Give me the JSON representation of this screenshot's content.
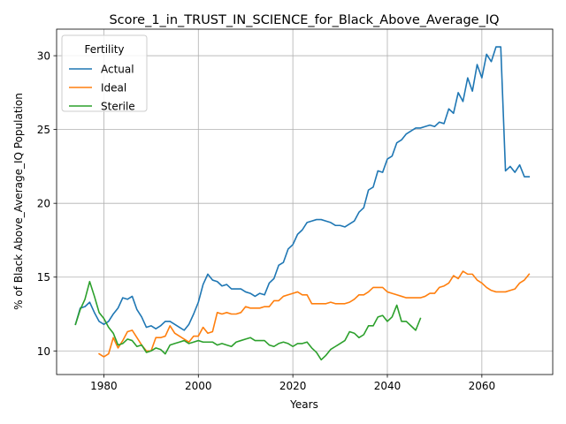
{
  "chart_data": {
    "type": "line",
    "title": "Score_1_in_TRUST_IN_SCIENCE_for_Black_Above_Average_IQ",
    "xlabel": "Years",
    "ylabel": "% of Black Above_Average_IQ Population",
    "xlim": [
      1970,
      2075
    ],
    "ylim": [
      8.4,
      31.8
    ],
    "xticks": [
      1980,
      2000,
      2020,
      2040,
      2060
    ],
    "yticks": [
      10,
      15,
      20,
      25,
      30
    ],
    "grid": true,
    "legend": {
      "title": "Fertility",
      "placement": "top-left"
    },
    "series": [
      {
        "name": "Actual",
        "color": "#1f77b4",
        "x": [
          1974,
          1975,
          1976,
          1977,
          1978,
          1979,
          1980,
          1981,
          1982,
          1983,
          1984,
          1985,
          1986,
          1987,
          1988,
          1989,
          1990,
          1991,
          1992,
          1993,
          1994,
          1995,
          1996,
          1997,
          1998,
          1999,
          2000,
          2001,
          2002,
          2003,
          2004,
          2005,
          2006,
          2007,
          2008,
          2009,
          2010,
          2011,
          2012,
          2013,
          2014,
          2015,
          2016,
          2017,
          2018,
          2019,
          2020,
          2021,
          2022,
          2023,
          2024,
          2025,
          2026,
          2027,
          2028,
          2029,
          2030,
          2031,
          2032,
          2033,
          2034,
          2035,
          2036,
          2037,
          2038,
          2039,
          2040,
          2041,
          2042,
          2043,
          2044,
          2045,
          2046,
          2047,
          2048,
          2049,
          2050,
          2051,
          2052,
          2053,
          2054,
          2055,
          2056,
          2057,
          2058,
          2059,
          2060,
          2061,
          2062,
          2063,
          2064,
          2065,
          2066,
          2067,
          2068,
          2069,
          2070
        ],
        "values": [
          11.8,
          12.9,
          13.0,
          13.3,
          12.6,
          12.0,
          11.8,
          12.0,
          12.5,
          12.9,
          13.6,
          13.5,
          13.7,
          12.8,
          12.3,
          11.6,
          11.7,
          11.5,
          11.7,
          12.0,
          12.0,
          11.8,
          11.6,
          11.4,
          11.8,
          12.5,
          13.3,
          14.5,
          15.2,
          14.8,
          14.7,
          14.4,
          14.5,
          14.2,
          14.2,
          14.2,
          14.0,
          13.9,
          13.7,
          13.9,
          13.8,
          14.6,
          14.9,
          15.8,
          16.0,
          16.9,
          17.2,
          17.9,
          18.2,
          18.7,
          18.8,
          18.9,
          18.9,
          18.8,
          18.7,
          18.5,
          18.5,
          18.4,
          18.6,
          18.8,
          19.4,
          19.7,
          20.9,
          21.1,
          22.2,
          22.1,
          23.0,
          23.2,
          24.1,
          24.3,
          24.7,
          24.9,
          25.1,
          25.1,
          25.2,
          25.3,
          25.2,
          25.5,
          25.4,
          26.4,
          26.1,
          27.5,
          26.9,
          28.5,
          27.6,
          29.4,
          28.5,
          30.1,
          29.6,
          30.6,
          30.6,
          22.2,
          22.5,
          22.1,
          22.6,
          21.8,
          21.8
        ]
      },
      {
        "name": "Ideal",
        "color": "#ff7f0e",
        "x": [
          1979,
          1980,
          1981,
          1982,
          1983,
          1984,
          1985,
          1986,
          1987,
          1988,
          1989,
          1990,
          1991,
          1992,
          1993,
          1994,
          1995,
          1996,
          1997,
          1998,
          1999,
          2000,
          2001,
          2002,
          2003,
          2004,
          2005,
          2006,
          2007,
          2008,
          2009,
          2010,
          2011,
          2012,
          2013,
          2014,
          2015,
          2016,
          2017,
          2018,
          2019,
          2020,
          2021,
          2022,
          2023,
          2024,
          2025,
          2026,
          2027,
          2028,
          2029,
          2030,
          2031,
          2032,
          2033,
          2034,
          2035,
          2036,
          2037,
          2038,
          2039,
          2040,
          2041,
          2042,
          2043,
          2044,
          2045,
          2046,
          2047,
          2048,
          2049,
          2050,
          2051,
          2052,
          2053,
          2054,
          2055,
          2056,
          2057,
          2058,
          2059,
          2060,
          2061,
          2062,
          2063,
          2064,
          2065,
          2066,
          2067,
          2068,
          2069,
          2070
        ],
        "values": [
          9.8,
          9.6,
          9.8,
          10.9,
          10.2,
          10.7,
          11.3,
          11.4,
          10.9,
          10.4,
          10.0,
          10.0,
          10.9,
          10.9,
          11.0,
          11.7,
          11.2,
          11.0,
          10.8,
          10.6,
          11.0,
          11.0,
          11.6,
          11.2,
          11.3,
          12.6,
          12.5,
          12.6,
          12.5,
          12.5,
          12.6,
          13.0,
          12.9,
          12.9,
          12.9,
          13.0,
          13.0,
          13.4,
          13.4,
          13.7,
          13.8,
          13.9,
          14.0,
          13.8,
          13.8,
          13.2,
          13.2,
          13.2,
          13.2,
          13.3,
          13.2,
          13.2,
          13.2,
          13.3,
          13.5,
          13.8,
          13.8,
          14.0,
          14.3,
          14.3,
          14.3,
          14.0,
          13.9,
          13.8,
          13.7,
          13.6,
          13.6,
          13.6,
          13.6,
          13.7,
          13.9,
          13.9,
          14.3,
          14.4,
          14.6,
          15.1,
          14.9,
          15.4,
          15.2,
          15.2,
          14.8,
          14.6,
          14.3,
          14.1,
          14.0,
          14.0,
          14.0,
          14.1,
          14.2,
          14.6,
          14.8,
          15.2
        ]
      },
      {
        "name": "Sterile",
        "color": "#2ca02c",
        "x": [
          1974,
          1975,
          1976,
          1977,
          1978,
          1979,
          1980,
          1981,
          1982,
          1983,
          1984,
          1985,
          1986,
          1987,
          1988,
          1989,
          1990,
          1991,
          1992,
          1993,
          1994,
          1995,
          1996,
          1997,
          1998,
          1999,
          2000,
          2001,
          2002,
          2003,
          2004,
          2005,
          2006,
          2007,
          2008,
          2009,
          2010,
          2011,
          2012,
          2013,
          2014,
          2015,
          2016,
          2017,
          2018,
          2019,
          2020,
          2021,
          2022,
          2023,
          2024,
          2025,
          2026,
          2027,
          2028,
          2029,
          2030,
          2031,
          2032,
          2033,
          2034,
          2035,
          2036,
          2037,
          2038,
          2039,
          2040,
          2041,
          2042,
          2043,
          2044,
          2045,
          2046,
          2047
        ],
        "values": [
          11.8,
          12.8,
          13.5,
          14.7,
          13.7,
          12.6,
          12.2,
          11.6,
          11.2,
          10.4,
          10.5,
          10.8,
          10.7,
          10.3,
          10.4,
          9.9,
          10.0,
          10.2,
          10.1,
          9.8,
          10.4,
          10.5,
          10.6,
          10.7,
          10.5,
          10.6,
          10.7,
          10.6,
          10.6,
          10.6,
          10.4,
          10.5,
          10.4,
          10.3,
          10.6,
          10.7,
          10.8,
          10.9,
          10.7,
          10.7,
          10.7,
          10.4,
          10.3,
          10.5,
          10.6,
          10.5,
          10.3,
          10.5,
          10.5,
          10.6,
          10.2,
          9.9,
          9.4,
          9.7,
          10.1,
          10.3,
          10.5,
          10.7,
          11.3,
          11.2,
          10.9,
          11.1,
          11.7,
          11.7,
          12.3,
          12.4,
          12.0,
          12.3,
          13.1,
          12.0,
          12.0,
          11.7,
          11.4,
          12.2
        ]
      }
    ]
  }
}
